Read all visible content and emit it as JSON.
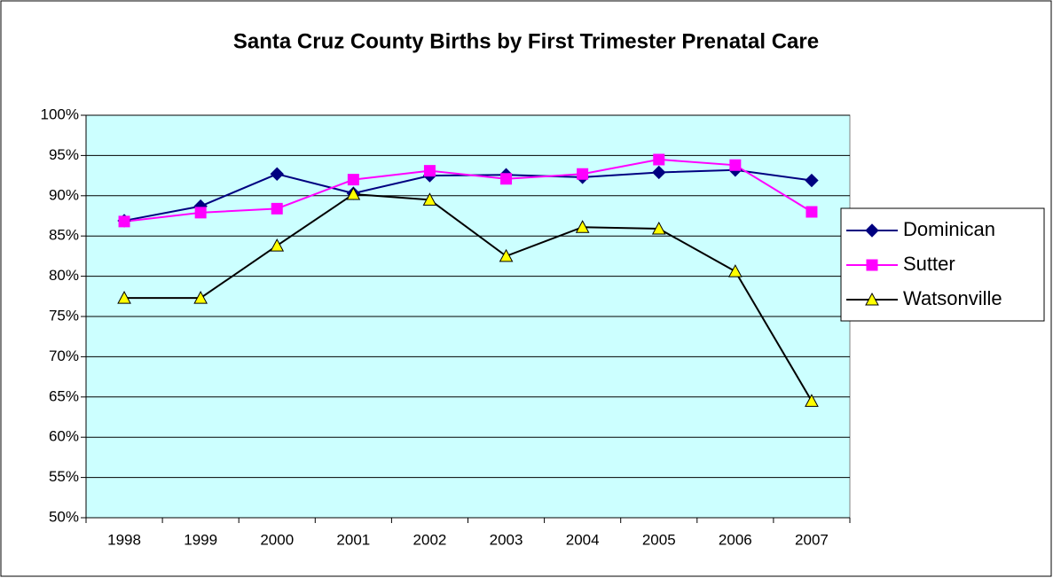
{
  "chart_data": {
    "type": "line",
    "title": "Santa Cruz County Births by First Trimester Prenatal Care",
    "categories": [
      "1998",
      "1999",
      "2000",
      "2001",
      "2002",
      "2003",
      "2004",
      "2005",
      "2006",
      "2007"
    ],
    "series": [
      {
        "name": "Dominican",
        "color": "#000080",
        "marker": "diamond",
        "values": [
          86.9,
          88.7,
          92.7,
          90.3,
          92.5,
          92.6,
          92.3,
          92.9,
          93.2,
          91.9
        ]
      },
      {
        "name": "Sutter",
        "color": "#ff00ff",
        "marker": "square",
        "values": [
          86.8,
          87.9,
          88.4,
          92.0,
          93.1,
          92.1,
          92.7,
          94.5,
          93.8,
          88.0
        ]
      },
      {
        "name": "Watsonville",
        "color": "#000000",
        "marker": "triangle",
        "marker_color": "#ffff00",
        "values": [
          77.3,
          77.3,
          83.8,
          90.2,
          89.5,
          82.5,
          86.1,
          85.9,
          80.6,
          64.5
        ]
      }
    ],
    "ylim": [
      50,
      100
    ],
    "yticks": [
      {
        "value": 50,
        "label": "50%"
      },
      {
        "value": 55,
        "label": "55%"
      },
      {
        "value": 60,
        "label": "60%"
      },
      {
        "value": 65,
        "label": "65%"
      },
      {
        "value": 70,
        "label": "70%"
      },
      {
        "value": 75,
        "label": "75%"
      },
      {
        "value": 80,
        "label": "80%"
      },
      {
        "value": 85,
        "label": "85%"
      },
      {
        "value": 90,
        "label": "90%"
      },
      {
        "value": 95,
        "label": "95%"
      },
      {
        "value": 100,
        "label": "100%"
      }
    ],
    "grid": true,
    "legend": "right",
    "plot_background": "#ccffff"
  }
}
